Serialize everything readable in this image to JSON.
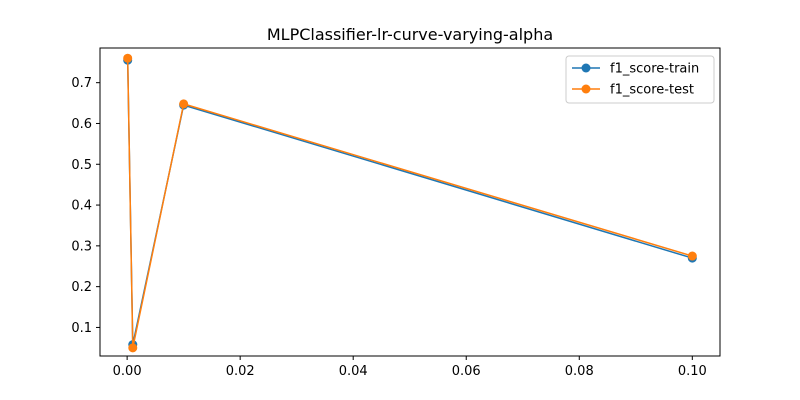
{
  "chart_data": {
    "type": "line",
    "title": "MLPClassifier-lr-curve-varying-alpha",
    "xlabel": "",
    "ylabel": "",
    "x": [
      0.0001,
      0.001,
      0.01,
      0.1
    ],
    "xlim": [
      -0.0048,
      0.1049
    ],
    "ylim": [
      0.03,
      0.785
    ],
    "xticks": [
      0.0,
      0.02,
      0.04,
      0.06,
      0.08,
      0.1
    ],
    "xtick_labels": [
      "0.00",
      "0.02",
      "0.04",
      "0.06",
      "0.08",
      "0.10"
    ],
    "yticks": [
      0.1,
      0.2,
      0.3,
      0.4,
      0.5,
      0.6,
      0.7
    ],
    "ytick_labels": [
      "0.1",
      "0.2",
      "0.3",
      "0.4",
      "0.5",
      "0.6",
      "0.7"
    ],
    "grid": false,
    "legend_position": "top-right",
    "series": [
      {
        "name": "f1_score-train",
        "color": "#1f77b4",
        "values": [
          0.755,
          0.058,
          0.645,
          0.27
        ]
      },
      {
        "name": "f1_score-test",
        "color": "#ff7f0e",
        "values": [
          0.76,
          0.05,
          0.648,
          0.275
        ]
      }
    ]
  }
}
